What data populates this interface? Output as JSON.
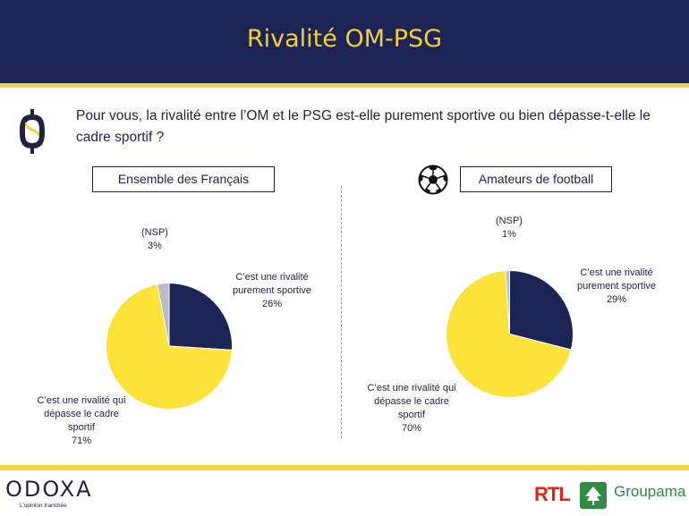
{
  "header": {
    "title": "Rivalité OM-PSG"
  },
  "question": "Pour vous, la rivalité entre l’OM et le PSG est-elle purement sportive ou bien dépasse-t-elle le cadre sportif ?",
  "colors": {
    "navy": "#1c2456",
    "yellow": "#fde23a",
    "grey": "#b9bcc4"
  },
  "chart_data": [
    {
      "type": "pie",
      "title": "Ensemble des Français",
      "slices": [
        {
          "label": "C’est une rivalité purement sportive",
          "value": 26,
          "display": "26%",
          "color": "#1c2456"
        },
        {
          "label": "C’est une rivalité qui dépasse le cadre sportif",
          "value": 71,
          "display": "71%",
          "color": "#fde23a"
        },
        {
          "label": "(NSP)",
          "value": 3,
          "display": "3%",
          "color": "#b9bcc4"
        }
      ]
    },
    {
      "type": "pie",
      "title": "Amateurs de football",
      "slices": [
        {
          "label": "C’est une rivalité purement sportive",
          "value": 29,
          "display": "29%",
          "color": "#1c2456"
        },
        {
          "label": "C’est une rivalité qui dépasse le cadre sportif",
          "value": 70,
          "display": "70%",
          "color": "#fde23a"
        },
        {
          "label": "(NSP)",
          "value": 1,
          "display": "1%",
          "color": "#b9bcc4"
        }
      ]
    }
  ],
  "footer": {
    "brand": "ODOXA",
    "tagline": "L’opinion tranchée",
    "partner1": "RTL",
    "partner2": "Groupama"
  },
  "icons": {
    "logo": "odoxa-coin-icon",
    "ball": "football-icon",
    "groupama": "groupama-tree-icon"
  }
}
